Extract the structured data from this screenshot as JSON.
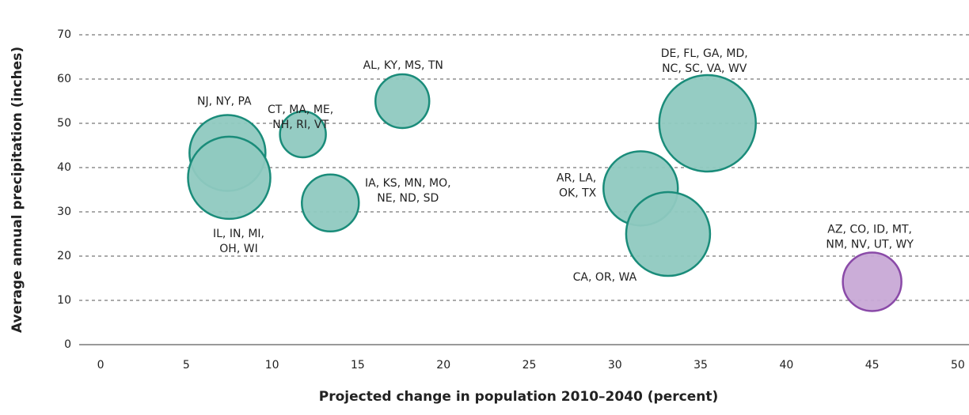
{
  "chart_data": {
    "type": "bubble",
    "xlabel": "Projected change in population 2010–2040 (percent)",
    "ylabel": "Average annual precipitation (inches)",
    "labels": [
      [
        "NJ, NY, PA"
      ],
      [
        "IL, IN, MI,",
        "OH, WI"
      ],
      [
        "CT, MA, ME,",
        "NH, RI, VT"
      ],
      [
        "AL, KY, MS, TN"
      ],
      [
        "IA, KS, MN, MO,",
        "NE, ND, SD"
      ],
      [
        "DE, FL, GA, MD,",
        "NC, SC, VA, WV"
      ],
      [
        "AR, LA,",
        "OK, TX"
      ],
      [
        "CA, OR, WA"
      ],
      [
        "AZ, CO, ID, MT,",
        "NM, NV, UT, WY"
      ]
    ],
    "x": [
      7.4,
      7.5,
      11.8,
      17.6,
      13.4,
      35.4,
      31.5,
      33.1,
      45
    ],
    "values": [
      43.3,
      37.7,
      47.5,
      55,
      32,
      50,
      35.3,
      25,
      14.2
    ],
    "sizes": [
      48,
      52,
      29,
      34,
      36,
      61,
      47,
      53,
      37
    ],
    "colors": [
      "#8fc9c0",
      "#8fc9c0",
      "#8fc9c0",
      "#8fc9c0",
      "#8fc9c0",
      "#8fc9c0",
      "#8fc9c0",
      "#8fc9c0",
      "#c8a9d6"
    ],
    "edge_colors": [
      "#1a8c7a",
      "#1a8c7a",
      "#1a8c7a",
      "#1a8c7a",
      "#1a8c7a",
      "#1a8c7a",
      "#1a8c7a",
      "#1a8c7a",
      "#8a4aa8"
    ],
    "xlim": [
      -1.25,
      50.65
    ],
    "ylim": [
      0,
      70
    ],
    "xticks": [
      0,
      5,
      10,
      15,
      20,
      25,
      30,
      35,
      40,
      45,
      50
    ],
    "yticks": [
      0,
      10,
      20,
      30,
      40,
      50,
      60,
      70
    ],
    "grid": true
  }
}
